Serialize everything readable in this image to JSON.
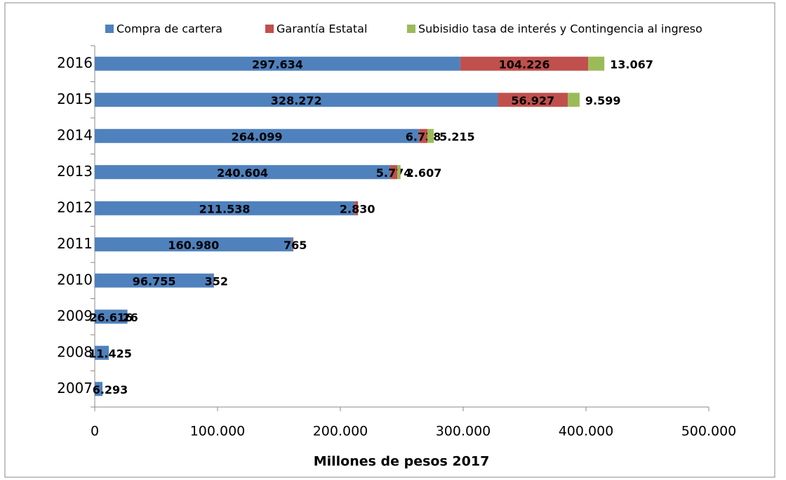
{
  "chart_data": {
    "type": "stacked-barh",
    "x_label": "Millones de pesos 2017",
    "categories": [
      "2016",
      "2015",
      "2014",
      "2013",
      "2012",
      "2011",
      "2010",
      "2009",
      "2008",
      "2007"
    ],
    "series": [
      {
        "name": "Compra de cartera",
        "color": "#4f81bd",
        "values": [
          297634,
          328272,
          264099,
          240604,
          211538,
          160980,
          96755,
          26616,
          11425,
          6293
        ],
        "value_labels": [
          "297.634",
          "328.272",
          "264.099",
          "240.604",
          "211.538",
          "160.980",
          "96.755",
          "26.616",
          "11.425",
          "6.293"
        ]
      },
      {
        "name": "Garantía Estatal",
        "color": "#c0504d",
        "values": [
          104226,
          56927,
          6738,
          5774,
          2830,
          765,
          352,
          26,
          null,
          null
        ],
        "value_labels": [
          "104.226",
          "56.927",
          "6.738",
          "5.774",
          "2.830",
          "765",
          "352",
          "26",
          null,
          null
        ]
      },
      {
        "name": "Subisidio tasa de interés y Contingencia al ingreso",
        "color": "#9bbb59",
        "values": [
          13067,
          9599,
          5215,
          2607,
          null,
          null,
          null,
          null,
          null,
          null
        ],
        "value_labels": [
          "13.067",
          "9.599",
          "5.215",
          "2.607",
          null,
          null,
          null,
          null,
          null,
          null
        ]
      }
    ],
    "xlim": [
      0,
      500000
    ],
    "xticks": [
      0,
      {
        "value": 100000,
        "label": "100.000"
      },
      {
        "value": 200000,
        "label": "200.000"
      },
      {
        "value": 300000,
        "label": "300.000"
      },
      {
        "value": 400000,
        "label": "400.000"
      },
      {
        "value": 500000,
        "label": "500.000"
      }
    ],
    "legend": "top"
  }
}
